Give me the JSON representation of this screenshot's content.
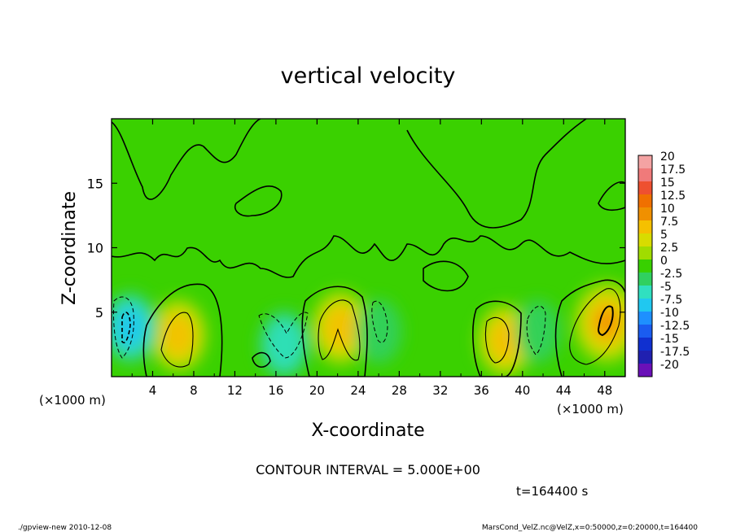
{
  "chart_data": {
    "type": "heatmap",
    "title": "vertical velocity",
    "xlabel": "X-coordinate",
    "ylabel": "Z-coordinate",
    "x_unit_left": "(×1000 m)",
    "x_unit_right": "(×1000 m)",
    "xlim": [
      0,
      50
    ],
    "ylim": [
      0,
      20
    ],
    "x_ticks": [
      "4",
      "8",
      "12",
      "16",
      "20",
      "24",
      "28",
      "32",
      "36",
      "40",
      "44",
      "48"
    ],
    "y_ticks": [
      "5",
      "10",
      "15"
    ],
    "colorbar": {
      "labels": [
        "20",
        "17.5",
        "15",
        "12.5",
        "10",
        "7.5",
        "5",
        "2.5",
        "0",
        "-2.5",
        "-5",
        "-7.5",
        "-10",
        "-12.5",
        "-15",
        "-17.5",
        "-20"
      ],
      "colors": [
        "#f4a3a3",
        "#f07a7a",
        "#ee5030",
        "#f07000",
        "#f09000",
        "#f5c000",
        "#d8dc00",
        "#a0dc00",
        "#38d000",
        "#30d060",
        "#30e0c0",
        "#20c8f0",
        "#1e90ff",
        "#1a5cf0",
        "#1030d0",
        "#2020b0",
        "#6a10b8"
      ]
    },
    "features": [
      {
        "x": 6.5,
        "z": 3.2,
        "w": 8.5,
        "label": "updraft"
      },
      {
        "x": 22.3,
        "z": 3.8,
        "w": 9.0,
        "label": "updraft"
      },
      {
        "x": 38.3,
        "z": 2.8,
        "w": 8.0,
        "label": "updraft"
      },
      {
        "x": 48.2,
        "z": 4.2,
        "w": 12.0,
        "label": "updraft"
      },
      {
        "x": 1.8,
        "z": 3.8,
        "w": -8.0,
        "label": "downdraft"
      },
      {
        "x": 16.8,
        "z": 2.5,
        "w": -6.0,
        "label": "downdraft"
      },
      {
        "x": 26.0,
        "z": 3.5,
        "w": -4.0,
        "label": "downdraft"
      },
      {
        "x": 41.5,
        "z": 3.5,
        "w": -3.5,
        "label": "downdraft"
      }
    ],
    "contour_interval_text": "CONTOUR INTERVAL = 5.000E+00",
    "time_text": "t=164400 s"
  },
  "footer": {
    "left": "./gpview-new 2010-12-08",
    "right": "MarsCond_VelZ.nc@VelZ,x=0:50000,z=0:20000,t=164400"
  }
}
